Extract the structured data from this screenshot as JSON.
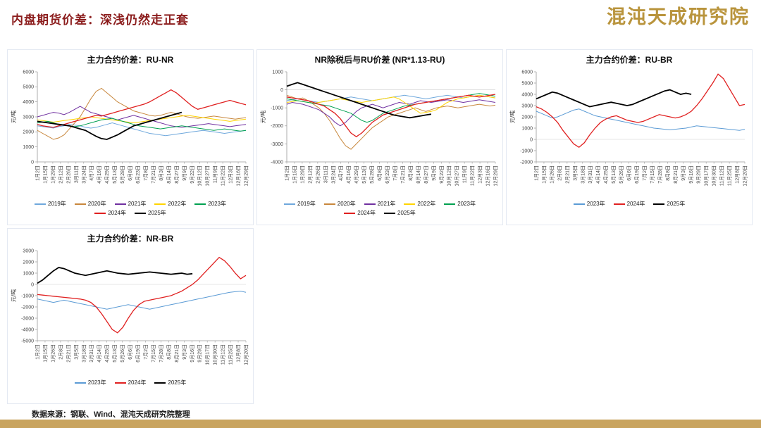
{
  "header": {
    "title": "内盘期货价差：深浅仍然走正套",
    "logo": "混沌天成研究院"
  },
  "footer": {
    "source": "数据来源：钢联、Wind、混沌天成研究院整理"
  },
  "colors": {
    "title_accent": "#8C1E1E",
    "logo_gold": "#B9943C",
    "footer_bar": "#C9A45F"
  },
  "chart_data": [
    {
      "type": "line",
      "title": "主力合约价差：RU-NR",
      "ylabel": "元/吨",
      "ylim": [
        0,
        6000
      ],
      "ytick_step": 1000,
      "grid": false,
      "legend_position": "bottom",
      "x_labels": [
        "1月2日",
        "1月15日",
        "1月29日",
        "2月12日",
        "2月26日",
        "3月11日",
        "3月24日",
        "4月7日",
        "4月16日",
        "4月29日",
        "5月13日",
        "5月28日",
        "6月8日",
        "6月23日",
        "7月8日",
        "7月21日",
        "8月3日",
        "8月14日",
        "8月27日",
        "9月9日",
        "9月22日",
        "10月12日",
        "10月27日",
        "11月9日",
        "11月22日",
        "12月3日",
        "12月16日",
        "12月29日"
      ],
      "series": [
        {
          "name": "2019年",
          "color": "#6FA8DC",
          "values": [
            2400,
            2350,
            2300,
            2250,
            2350,
            2400,
            2500,
            2450,
            2400,
            2300,
            2250,
            2300,
            2400,
            2500,
            2600,
            2500,
            2400,
            2300,
            2200,
            2100,
            2000,
            1900,
            1850,
            1800,
            1750,
            1800,
            1850,
            1900,
            1950,
            2000,
            2050,
            2100,
            2050,
            2000,
            1950,
            1900,
            1950,
            2000,
            2050,
            2100
          ]
        },
        {
          "name": "2020年",
          "color": "#C8873C",
          "values": [
            2100,
            1900,
            1700,
            1500,
            1600,
            1800,
            2200,
            2600,
            3000,
            3600,
            4200,
            4700,
            4900,
            4600,
            4300,
            4000,
            3800,
            3600,
            3400,
            3300,
            3200,
            3100,
            3050,
            3100,
            3200,
            3300,
            3200,
            3100,
            3000,
            2950,
            2900,
            2950,
            3000,
            3050,
            3000,
            2950,
            2900,
            2850,
            2900,
            2950
          ]
        },
        {
          "name": "2021年",
          "color": "#7030A0",
          "values": [
            3000,
            3100,
            3200,
            3300,
            3250,
            3150,
            3300,
            3500,
            3700,
            3500,
            3300,
            3200,
            3100,
            3000,
            2900,
            2800,
            2900,
            3000,
            3100,
            3000,
            2900,
            2800,
            2700,
            2600,
            2500,
            2400,
            2350,
            2300,
            2350,
            2400,
            2450,
            2500,
            2550,
            2500,
            2450,
            2400,
            2350,
            2400,
            2450,
            2500
          ]
        },
        {
          "name": "2022年",
          "color": "#FFD400",
          "values": [
            2800,
            2750,
            2700,
            2650,
            2700,
            2750,
            2800,
            2850,
            2900,
            2950,
            3000,
            2950,
            2900,
            2850,
            2800,
            2750,
            2700,
            2650,
            2600,
            2650,
            2700,
            2750,
            2800,
            2850,
            2900,
            2950,
            3000,
            3050,
            3100,
            3050,
            3000,
            2950,
            2900,
            2850,
            2800,
            2750,
            2700,
            2750,
            2800,
            2850
          ]
        },
        {
          "name": "2023年",
          "color": "#00A050",
          "values": [
            2600,
            2650,
            2700,
            2600,
            2500,
            2450,
            2400,
            2350,
            2400,
            2500,
            2600,
            2700,
            2800,
            2850,
            2900,
            2800,
            2700,
            2600,
            2500,
            2400,
            2350,
            2300,
            2250,
            2200,
            2250,
            2300,
            2350,
            2400,
            2350,
            2300,
            2250,
            2200,
            2150,
            2100,
            2150,
            2200,
            2150,
            2100,
            2050,
            2100
          ]
        },
        {
          "name": "2024年",
          "color": "#E02020",
          "values": [
            2500,
            2400,
            2350,
            2300,
            2400,
            2500,
            2600,
            2700,
            2800,
            2900,
            3000,
            3100,
            3050,
            3150,
            3250,
            3350,
            3450,
            3550,
            3650,
            3750,
            3850,
            4000,
            4200,
            4400,
            4600,
            4800,
            4600,
            4300,
            4000,
            3700,
            3500,
            3600,
            3700,
            3800,
            3900,
            4000,
            4100,
            4000,
            3900,
            3800
          ]
        },
        {
          "name": "2025年",
          "color": "#000000",
          "values": [
            2700,
            2650,
            2600,
            2550,
            2500,
            2450,
            2400,
            2300,
            2200,
            2100,
            1900,
            1700,
            1550,
            1500,
            1650,
            1800,
            2000,
            2200,
            2400,
            2500,
            2600,
            2700,
            2800,
            2900,
            3000,
            3100,
            3200,
            3300,
            null,
            null,
            null,
            null,
            null,
            null,
            null,
            null,
            null,
            null,
            null,
            null
          ]
        }
      ]
    },
    {
      "type": "line",
      "title": "NR除税后与RU价差 (NR*1.13-RU)",
      "ylabel": "元/吨",
      "ylim": [
        -4000,
        1000
      ],
      "ytick_step": 1000,
      "grid": false,
      "legend_position": "bottom",
      "x_labels": [
        "1月2日",
        "1月15日",
        "1月29日",
        "2月12日",
        "2月26日",
        "3月11日",
        "3月24日",
        "4月7日",
        "4月16日",
        "4月29日",
        "5月13日",
        "5月28日",
        "6月8日",
        "6月23日",
        "7月8日",
        "7月21日",
        "8月3日",
        "8月14日",
        "8月27日",
        "9月9日",
        "9月22日",
        "10月12日",
        "10月27日",
        "11月9日",
        "11月22日",
        "12月3日",
        "12月16日",
        "12月29日"
      ],
      "series": [
        {
          "name": "2019年",
          "color": "#6FA8DC",
          "values": [
            -600,
            -550,
            -500,
            -550,
            -600,
            -650,
            -700,
            -650,
            -600,
            -550,
            -500,
            -450,
            -400,
            -450,
            -500,
            -550,
            -600,
            -550,
            -500,
            -450,
            -400,
            -350,
            -300,
            -350,
            -400,
            -450,
            -500,
            -450,
            -400,
            -350,
            -300,
            -350,
            -400,
            -450,
            -400,
            -350,
            -300,
            -350,
            -400,
            -450
          ]
        },
        {
          "name": "2020年",
          "color": "#C8873C",
          "values": [
            -300,
            -400,
            -500,
            -450,
            -600,
            -800,
            -1000,
            -1300,
            -1700,
            -2200,
            -2700,
            -3100,
            -3300,
            -3000,
            -2700,
            -2400,
            -2100,
            -1900,
            -1700,
            -1500,
            -1400,
            -1300,
            -1200,
            -1100,
            -1000,
            -1100,
            -1200,
            -1100,
            -1000,
            -950,
            -900,
            -950,
            -1000,
            -950,
            -900,
            -850,
            -800,
            -850,
            -900,
            -850
          ]
        },
        {
          "name": "2021年",
          "color": "#7030A0",
          "values": [
            -800,
            -700,
            -750,
            -800,
            -900,
            -1000,
            -1100,
            -1300,
            -1500,
            -1800,
            -2000,
            -1800,
            -1500,
            -1200,
            -1000,
            -900,
            -800,
            -900,
            -1000,
            -900,
            -800,
            -700,
            -750,
            -800,
            -700,
            -600,
            -650,
            -700,
            -650,
            -600,
            -550,
            -600,
            -650,
            -700,
            -650,
            -600,
            -550,
            -600,
            -650,
            -700
          ]
        },
        {
          "name": "2022年",
          "color": "#FFD400",
          "values": [
            -700,
            -650,
            -600,
            -650,
            -700,
            -750,
            -700,
            -650,
            -600,
            -550,
            -500,
            -550,
            -600,
            -650,
            -700,
            -650,
            -600,
            -550,
            -500,
            -450,
            -400,
            -500,
            -700,
            -900,
            -1100,
            -1300,
            -1250,
            -1200,
            -1100,
            -900,
            -700,
            -600,
            -500,
            -450,
            -400,
            -350,
            -300,
            -350,
            -400,
            -450
          ]
        },
        {
          "name": "2023年",
          "color": "#00A050",
          "values": [
            -500,
            -550,
            -600,
            -650,
            -700,
            -750,
            -800,
            -850,
            -900,
            -1000,
            -1100,
            -1200,
            -1300,
            -1500,
            -1700,
            -1800,
            -1700,
            -1500,
            -1300,
            -1200,
            -1100,
            -1000,
            -900,
            -850,
            -800,
            -750,
            -700,
            -650,
            -600,
            -550,
            -500,
            -450,
            -400,
            -350,
            -300,
            -250,
            -200,
            -250,
            -300,
            -350
          ]
        },
        {
          "name": "2024年",
          "color": "#E02020",
          "values": [
            -400,
            -450,
            -500,
            -550,
            -600,
            -700,
            -800,
            -900,
            -1100,
            -1300,
            -1600,
            -2000,
            -2400,
            -2600,
            -2400,
            -2100,
            -1800,
            -1600,
            -1400,
            -1300,
            -1200,
            -1100,
            -1000,
            -900,
            -800,
            -750,
            -700,
            -650,
            -600,
            -550,
            -500,
            -450,
            -400,
            -350,
            -300,
            -350,
            -400,
            -350,
            -300,
            -250
          ]
        },
        {
          "name": "2025年",
          "color": "#000000",
          "values": [
            200,
            300,
            400,
            300,
            200,
            100,
            0,
            -100,
            -200,
            -300,
            -400,
            -500,
            -600,
            -700,
            -800,
            -900,
            -1000,
            -1100,
            -1200,
            -1300,
            -1400,
            -1450,
            -1500,
            -1550,
            -1500,
            -1450,
            -1400,
            -1350,
            null,
            null,
            null,
            null,
            null,
            null,
            null,
            null,
            null,
            null,
            null,
            null
          ]
        }
      ]
    },
    {
      "type": "line",
      "title": "主力合约价差：RU-BR",
      "ylabel": "元/吨",
      "ylim": [
        -2000,
        6000
      ],
      "ytick_step": 1000,
      "grid": false,
      "legend_position": "bottom",
      "x_labels": [
        "1月2日",
        "1月15日",
        "1月26日",
        "2月8日",
        "2月21日",
        "3月5日",
        "3月18日",
        "3月31日",
        "4月14日",
        "4月25日",
        "5月13日",
        "5月26日",
        "6月6日",
        "6月19日",
        "7月2日",
        "7月15日",
        "7月28日",
        "8月8日",
        "8月21日",
        "9月3日",
        "9月16日",
        "9月29日",
        "10月17日",
        "10月30日",
        "11月12日",
        "11月25日",
        "12月8日",
        "12月20日"
      ],
      "series": [
        {
          "name": "2023年",
          "color": "#5B9BD5",
          "values": [
            2500,
            2300,
            2100,
            1900,
            2000,
            2200,
            2400,
            2600,
            2700,
            2500,
            2300,
            2100,
            2000,
            1900,
            1800,
            1700,
            1600,
            1500,
            1400,
            1300,
            1200,
            1100,
            1000,
            950,
            900,
            850,
            900,
            950,
            1000,
            1100,
            1200,
            1150,
            1100,
            1050,
            1000,
            950,
            900,
            850,
            800,
            900
          ]
        },
        {
          "name": "2024年",
          "color": "#E02020",
          "values": [
            2900,
            2700,
            2400,
            2000,
            1500,
            800,
            200,
            -400,
            -700,
            -300,
            400,
            1000,
            1500,
            1800,
            2000,
            2100,
            1900,
            1700,
            1600,
            1500,
            1600,
            1800,
            2000,
            2200,
            2100,
            2000,
            1900,
            2000,
            2200,
            2500,
            3000,
            3600,
            4300,
            5000,
            5800,
            5400,
            4600,
            3800,
            3000,
            3100
          ]
        },
        {
          "name": "2025年",
          "color": "#000000",
          "values": [
            3600,
            3800,
            4000,
            4200,
            4100,
            3900,
            3700,
            3500,
            3300,
            3100,
            2900,
            3000,
            3100,
            3200,
            3300,
            3200,
            3100,
            3000,
            3100,
            3300,
            3500,
            3700,
            3900,
            4100,
            4300,
            4400,
            4200,
            4000,
            4100,
            4000,
            null,
            null,
            null,
            null,
            null,
            null,
            null,
            null,
            null,
            null
          ]
        }
      ]
    },
    {
      "type": "line",
      "title": "主力合约价差：NR-BR",
      "ylabel": "元/吨",
      "ylim": [
        -5000,
        3000
      ],
      "ytick_step": 1000,
      "grid": false,
      "legend_position": "bottom",
      "x_labels": [
        "1月2日",
        "1月15日",
        "1月26日",
        "2月8日",
        "2月21日",
        "3月5日",
        "3月18日",
        "3月31日",
        "4月14日",
        "4月25日",
        "5月13日",
        "5月26日",
        "6月6日",
        "6月19日",
        "7月2日",
        "7月15日",
        "7月28日",
        "8月8日",
        "8月21日",
        "9月3日",
        "9月16日",
        "9月29日",
        "10月17日",
        "10月30日",
        "11月12日",
        "11月25日",
        "12月8日",
        "12月20日"
      ],
      "series": [
        {
          "name": "2023年",
          "color": "#5B9BD5",
          "values": [
            -1300,
            -1400,
            -1500,
            -1600,
            -1500,
            -1400,
            -1500,
            -1600,
            -1700,
            -1800,
            -1900,
            -2000,
            -2100,
            -2200,
            -2100,
            -2000,
            -1900,
            -1800,
            -1900,
            -2000,
            -2100,
            -2200,
            -2100,
            -2000,
            -1900,
            -1800,
            -1700,
            -1600,
            -1500,
            -1400,
            -1300,
            -1200,
            -1100,
            -1000,
            -900,
            -800,
            -700,
            -650,
            -600,
            -700
          ]
        },
        {
          "name": "2024年",
          "color": "#E02020",
          "values": [
            -900,
            -950,
            -1000,
            -1050,
            -1100,
            -1150,
            -1200,
            -1250,
            -1300,
            -1400,
            -1600,
            -2000,
            -2600,
            -3300,
            -4000,
            -4300,
            -3800,
            -3000,
            -2300,
            -1800,
            -1500,
            -1400,
            -1300,
            -1200,
            -1100,
            -1000,
            -800,
            -600,
            -300,
            0,
            400,
            900,
            1400,
            1900,
            2400,
            2100,
            1600,
            1000,
            500,
            800
          ]
        },
        {
          "name": "2025年",
          "color": "#000000",
          "values": [
            100,
            400,
            800,
            1200,
            1500,
            1400,
            1200,
            1000,
            900,
            800,
            900,
            1000,
            1100,
            1200,
            1100,
            1000,
            950,
            900,
            950,
            1000,
            1050,
            1100,
            1050,
            1000,
            950,
            900,
            950,
            1000,
            900,
            950,
            null,
            null,
            null,
            null,
            null,
            null,
            null,
            null,
            null,
            null
          ]
        }
      ]
    }
  ]
}
